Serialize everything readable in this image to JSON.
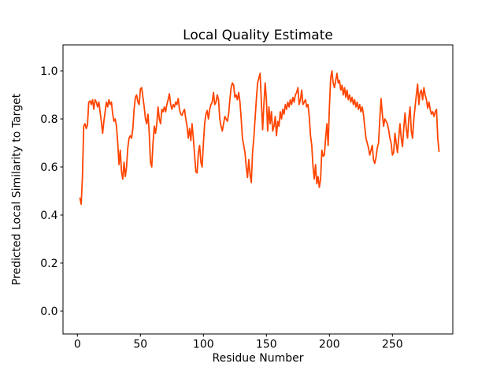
{
  "chart_data": {
    "type": "line",
    "title": "Local Quality Estimate",
    "xlabel": "Residue Number",
    "ylabel": "Predicted Local Similarity to Target",
    "line_color": "#ff4500",
    "background_color": "#ffffff",
    "grid": false,
    "legend": "none",
    "xlim": [
      -12,
      298
    ],
    "ylim": [
      -0.1,
      1.11
    ],
    "xticks": [
      {
        "v": 0,
        "label": "0"
      },
      {
        "v": 50,
        "label": "50"
      },
      {
        "v": 100,
        "label": "100"
      },
      {
        "v": 150,
        "label": "150"
      },
      {
        "v": 200,
        "label": "200"
      },
      {
        "v": 250,
        "label": "250"
      }
    ],
    "yticks": [
      {
        "v": 0.0,
        "label": "0.0"
      },
      {
        "v": 0.2,
        "label": "0.2"
      },
      {
        "v": 0.4,
        "label": "0.4"
      },
      {
        "v": 0.6,
        "label": "0.6"
      },
      {
        "v": 0.8,
        "label": "0.8"
      },
      {
        "v": 1.0,
        "label": "1.0"
      }
    ],
    "x_name": "residue_number",
    "x_start": 2,
    "x_step": 1,
    "values": [
      0.47,
      0.445,
      0.56,
      0.77,
      0.78,
      0.76,
      0.775,
      0.87,
      0.875,
      0.86,
      0.88,
      0.84,
      0.88,
      0.87,
      0.85,
      0.87,
      0.83,
      0.79,
      0.74,
      0.79,
      0.83,
      0.87,
      0.85,
      0.88,
      0.86,
      0.87,
      0.82,
      0.79,
      0.8,
      0.77,
      0.7,
      0.61,
      0.67,
      0.58,
      0.55,
      0.62,
      0.56,
      0.6,
      0.68,
      0.72,
      0.73,
      0.72,
      0.76,
      0.84,
      0.89,
      0.9,
      0.87,
      0.86,
      0.925,
      0.93,
      0.89,
      0.85,
      0.8,
      0.78,
      0.82,
      0.74,
      0.62,
      0.6,
      0.7,
      0.77,
      0.74,
      0.78,
      0.85,
      0.8,
      0.78,
      0.84,
      0.83,
      0.85,
      0.83,
      0.86,
      0.88,
      0.905,
      0.86,
      0.84,
      0.86,
      0.85,
      0.87,
      0.86,
      0.885,
      0.84,
      0.82,
      0.815,
      0.83,
      0.84,
      0.8,
      0.77,
      0.72,
      0.76,
      0.71,
      0.78,
      0.72,
      0.65,
      0.58,
      0.575,
      0.66,
      0.69,
      0.62,
      0.6,
      0.7,
      0.78,
      0.82,
      0.835,
      0.8,
      0.84,
      0.86,
      0.87,
      0.91,
      0.86,
      0.87,
      0.9,
      0.88,
      0.8,
      0.77,
      0.75,
      0.78,
      0.81,
      0.8,
      0.79,
      0.82,
      0.88,
      0.93,
      0.95,
      0.94,
      0.89,
      0.9,
      0.88,
      0.91,
      0.87,
      0.8,
      0.72,
      0.69,
      0.66,
      0.6,
      0.556,
      0.63,
      0.57,
      0.535,
      0.66,
      0.72,
      0.8,
      0.88,
      0.95,
      0.97,
      0.99,
      0.87,
      0.755,
      0.86,
      0.95,
      0.88,
      0.75,
      0.85,
      0.78,
      0.83,
      0.75,
      0.77,
      0.81,
      0.73,
      0.79,
      0.77,
      0.83,
      0.8,
      0.84,
      0.82,
      0.86,
      0.84,
      0.87,
      0.85,
      0.88,
      0.86,
      0.89,
      0.87,
      0.9,
      0.91,
      0.93,
      0.86,
      0.88,
      0.92,
      0.86,
      0.87,
      0.88,
      0.85,
      0.86,
      0.81,
      0.73,
      0.69,
      0.6,
      0.55,
      0.61,
      0.53,
      0.56,
      0.515,
      0.55,
      0.67,
      0.645,
      0.65,
      0.72,
      0.78,
      0.69,
      0.85,
      0.97,
      1.0,
      0.95,
      0.93,
      0.96,
      0.99,
      0.95,
      0.96,
      0.92,
      0.94,
      0.9,
      0.93,
      0.89,
      0.92,
      0.88,
      0.9,
      0.87,
      0.89,
      0.86,
      0.88,
      0.85,
      0.87,
      0.84,
      0.86,
      0.83,
      0.85,
      0.82,
      0.77,
      0.72,
      0.7,
      0.68,
      0.65,
      0.67,
      0.69,
      0.63,
      0.615,
      0.64,
      0.68,
      0.7,
      0.8,
      0.885,
      0.82,
      0.77,
      0.8,
      0.79,
      0.78,
      0.755,
      0.72,
      0.7,
      0.65,
      0.66,
      0.74,
      0.7,
      0.66,
      0.72,
      0.78,
      0.72,
      0.685,
      0.76,
      0.825,
      0.76,
      0.72,
      0.8,
      0.85,
      0.75,
      0.72,
      0.8,
      0.85,
      0.9,
      0.945,
      0.86,
      0.91,
      0.92,
      0.88,
      0.93,
      0.9,
      0.88,
      0.845,
      0.87,
      0.84,
      0.82,
      0.83,
      0.81,
      0.83,
      0.84,
      0.72,
      0.665
    ]
  }
}
